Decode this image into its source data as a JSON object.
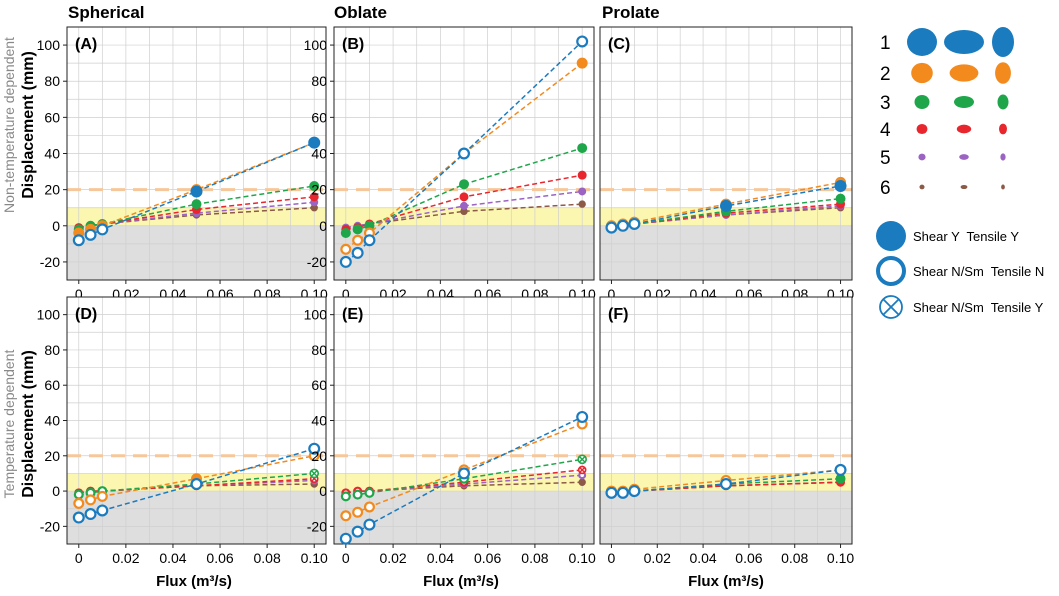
{
  "column_titles": [
    "Spherical",
    "Oblate",
    "Prolate"
  ],
  "row_titles": [
    "Non-temperature dependent",
    "Temperature dependent"
  ],
  "ylabel": "Displacement (mm)",
  "xlabel": "Flux (m³/s)",
  "colors": {
    "1": "#1a7bbf",
    "2": "#f28a1e",
    "3": "#1fa64a",
    "4": "#e8262d",
    "5": "#9b63c2",
    "6": "#8c5a47",
    "yellow_band": "#fbf7b0",
    "gray_band": "#dedede",
    "dash_line": "#f6c79a"
  },
  "legend": {
    "size_labels": [
      "1",
      "2",
      "3",
      "4",
      "5",
      "6"
    ],
    "marker_types": [
      {
        "style": "filled",
        "label": "Shear Y  Tensile Y"
      },
      {
        "style": "hollow",
        "label": "Shear N/Sm  Tensile N"
      },
      {
        "style": "cross",
        "label": "Shear N/Sm  Tensile Y"
      }
    ]
  },
  "chart_data": [
    {
      "panel": "(A)",
      "type": "line",
      "title": "Spherical",
      "x": [
        0,
        0.005,
        0.01,
        0.05,
        0.1
      ],
      "xlim": [
        -0.005,
        0.105
      ],
      "ylim": [
        -30,
        110
      ],
      "xticks": [
        "0",
        "0.02",
        "0.04",
        "0.06",
        "0.08",
        "0.10"
      ],
      "yticks": [
        "-20",
        "0",
        "20",
        "40",
        "60",
        "80",
        "100"
      ],
      "band_yellow": [
        0,
        10
      ],
      "band_gray": [
        -30,
        0
      ],
      "threshold": 20,
      "series": [
        {
          "name": "1",
          "values": [
            -8,
            -5,
            -2,
            19,
            46
          ],
          "markers": [
            "hollow",
            "hollow",
            "hollow",
            "filled",
            "filled"
          ]
        },
        {
          "name": "2",
          "values": [
            -4,
            -2,
            0,
            20,
            46
          ],
          "markers": [
            "filled",
            "filled",
            "filled",
            "filled",
            "filled"
          ]
        },
        {
          "name": "3",
          "values": [
            -2,
            0,
            1,
            12,
            22
          ],
          "markers": [
            "filled",
            "filled",
            "filled",
            "filled",
            "filled"
          ]
        },
        {
          "name": "4",
          "values": [
            -1,
            0,
            1,
            9,
            16
          ],
          "markers": [
            "filled",
            "filled",
            "filled",
            "filled",
            "filled"
          ]
        },
        {
          "name": "5",
          "values": [
            -1,
            0,
            1,
            7,
            13
          ],
          "markers": [
            "filled",
            "filled",
            "filled",
            "filled",
            "filled"
          ]
        },
        {
          "name": "6",
          "values": [
            -1,
            0,
            1,
            6,
            10
          ],
          "markers": [
            "filled",
            "filled",
            "filled",
            "filled",
            "filled"
          ]
        }
      ]
    },
    {
      "panel": "(B)",
      "type": "line",
      "title": "Oblate",
      "x": [
        0,
        0.005,
        0.01,
        0.05,
        0.1
      ],
      "xlim": [
        -0.005,
        0.105
      ],
      "ylim": [
        -30,
        110
      ],
      "xticks": [
        "0",
        "0.02",
        "0.04",
        "0.06",
        "0.08",
        "0.10"
      ],
      "yticks": [
        "-20",
        "0",
        "20",
        "40",
        "60",
        "80",
        "100"
      ],
      "band_yellow": [
        0,
        10
      ],
      "band_gray": [
        -30,
        0
      ],
      "threshold": 20,
      "series": [
        {
          "name": "1",
          "values": [
            -20,
            -15,
            -8,
            40,
            102
          ],
          "markers": [
            "hollow",
            "hollow",
            "hollow",
            "hollow",
            "hollow"
          ]
        },
        {
          "name": "2",
          "values": [
            -13,
            -8,
            -4,
            40,
            90
          ],
          "markers": [
            "hollow",
            "hollow",
            "hollow",
            "hollow",
            "filled"
          ]
        },
        {
          "name": "3",
          "values": [
            -4,
            -2,
            0,
            23,
            43
          ],
          "markers": [
            "filled",
            "filled",
            "filled",
            "filled",
            "filled"
          ]
        },
        {
          "name": "4",
          "values": [
            -2,
            -1,
            1,
            16,
            28
          ],
          "markers": [
            "filled",
            "filled",
            "filled",
            "filled",
            "filled"
          ]
        },
        {
          "name": "5",
          "values": [
            -1,
            0,
            1,
            11,
            19
          ],
          "markers": [
            "filled",
            "filled",
            "filled",
            "filled",
            "filled"
          ]
        },
        {
          "name": "6",
          "values": [
            -1,
            0,
            1,
            8,
            12
          ],
          "markers": [
            "filled",
            "filled",
            "filled",
            "filled",
            "filled"
          ]
        }
      ]
    },
    {
      "panel": "(C)",
      "type": "line",
      "title": "Prolate",
      "x": [
        0,
        0.005,
        0.01,
        0.05,
        0.1
      ],
      "xlim": [
        -0.005,
        0.105
      ],
      "ylim": [
        -30,
        110
      ],
      "xticks": [
        "0",
        "0.02",
        "0.04",
        "0.06",
        "0.08",
        "0.10"
      ],
      "yticks": [
        "-20",
        "0",
        "20",
        "40",
        "60",
        "80",
        "100"
      ],
      "band_yellow": [
        0,
        10
      ],
      "band_gray": [
        -30,
        0
      ],
      "threshold": 20,
      "series": [
        {
          "name": "1",
          "values": [
            -1,
            0,
            1,
            11,
            22
          ],
          "markers": [
            "hollow",
            "hollow",
            "hollow",
            "filled",
            "filled"
          ]
        },
        {
          "name": "2",
          "values": [
            0,
            1,
            2,
            12,
            24
          ],
          "markers": [
            "hollow",
            "filled",
            "filled",
            "filled",
            "filled"
          ]
        },
        {
          "name": "3",
          "values": [
            0,
            0,
            1,
            8,
            15
          ],
          "markers": [
            "filled",
            "filled",
            "filled",
            "filled",
            "filled"
          ]
        },
        {
          "name": "4",
          "values": [
            0,
            0,
            1,
            7,
            12
          ],
          "markers": [
            "filled",
            "filled",
            "filled",
            "filled",
            "filled"
          ]
        },
        {
          "name": "5",
          "values": [
            0,
            0,
            1,
            6,
            11
          ],
          "markers": [
            "filled",
            "filled",
            "filled",
            "filled",
            "filled"
          ]
        },
        {
          "name": "6",
          "values": [
            0,
            0,
            1,
            6,
            10
          ],
          "markers": [
            "filled",
            "filled",
            "filled",
            "filled",
            "filled"
          ]
        }
      ]
    },
    {
      "panel": "(D)",
      "type": "line",
      "title": "",
      "x": [
        0,
        0.005,
        0.01,
        0.05,
        0.1
      ],
      "xlim": [
        -0.005,
        0.105
      ],
      "ylim": [
        -30,
        110
      ],
      "xticks": [
        "0",
        "0.02",
        "0.04",
        "0.06",
        "0.08",
        "0.10"
      ],
      "yticks": [
        "-20",
        "0",
        "20",
        "40",
        "60",
        "80",
        "100"
      ],
      "band_yellow": [
        0,
        10
      ],
      "band_gray": [
        -30,
        0
      ],
      "threshold": 20,
      "series": [
        {
          "name": "1",
          "values": [
            -15,
            -13,
            -11,
            4,
            24
          ],
          "markers": [
            "hollow",
            "hollow",
            "hollow",
            "hollow",
            "hollow"
          ]
        },
        {
          "name": "2",
          "values": [
            -7,
            -5,
            -3,
            7,
            20
          ],
          "markers": [
            "hollow",
            "hollow",
            "hollow",
            "filled",
            "hollow"
          ]
        },
        {
          "name": "3",
          "values": [
            -2,
            -1,
            0,
            4,
            10
          ],
          "markers": [
            "hollow",
            "hollow",
            "hollow",
            "hollow",
            "cross"
          ]
        },
        {
          "name": "4",
          "values": [
            -1,
            0,
            0,
            3,
            7
          ],
          "markers": [
            "hollow",
            "hollow",
            "hollow",
            "hollow",
            "cross"
          ]
        },
        {
          "name": "5",
          "values": [
            -1,
            0,
            0,
            3,
            6
          ],
          "markers": [
            "hollow",
            "hollow",
            "hollow",
            "hollow",
            "hollow"
          ]
        },
        {
          "name": "6",
          "values": [
            -1,
            0,
            0,
            3,
            4
          ],
          "markers": [
            "hollow",
            "hollow",
            "hollow",
            "hollow",
            "filled"
          ]
        }
      ]
    },
    {
      "panel": "(E)",
      "type": "line",
      "title": "",
      "x": [
        0,
        0.005,
        0.01,
        0.05,
        0.1
      ],
      "xlim": [
        -0.005,
        0.105
      ],
      "ylim": [
        -30,
        110
      ],
      "xticks": [
        "0",
        "0.02",
        "0.04",
        "0.06",
        "0.08",
        "0.10"
      ],
      "yticks": [
        "-20",
        "0",
        "20",
        "40",
        "60",
        "80",
        "100"
      ],
      "band_yellow": [
        0,
        10
      ],
      "band_gray": [
        -30,
        0
      ],
      "threshold": 20,
      "series": [
        {
          "name": "1",
          "values": [
            -27,
            -23,
            -19,
            10,
            42
          ],
          "markers": [
            "hollow",
            "hollow",
            "hollow",
            "hollow",
            "hollow"
          ]
        },
        {
          "name": "2",
          "values": [
            -14,
            -12,
            -9,
            12,
            38
          ],
          "markers": [
            "hollow",
            "hollow",
            "hollow",
            "hollow",
            "hollow"
          ]
        },
        {
          "name": "3",
          "values": [
            -3,
            -2,
            -1,
            7,
            18
          ],
          "markers": [
            "hollow",
            "hollow",
            "hollow",
            "hollow",
            "cross"
          ]
        },
        {
          "name": "4",
          "values": [
            -1,
            0,
            0,
            5,
            12
          ],
          "markers": [
            "hollow",
            "hollow",
            "hollow",
            "hollow",
            "cross"
          ]
        },
        {
          "name": "5",
          "values": [
            -1,
            0,
            0,
            4,
            9
          ],
          "markers": [
            "hollow",
            "hollow",
            "hollow",
            "hollow",
            "hollow"
          ]
        },
        {
          "name": "6",
          "values": [
            -1,
            0,
            0,
            3,
            5
          ],
          "markers": [
            "hollow",
            "hollow",
            "hollow",
            "hollow",
            "filled"
          ]
        }
      ]
    },
    {
      "panel": "(F)",
      "type": "line",
      "title": "",
      "x": [
        0,
        0.005,
        0.01,
        0.05,
        0.1
      ],
      "xlim": [
        -0.005,
        0.105
      ],
      "ylim": [
        -30,
        110
      ],
      "xticks": [
        "0",
        "0.02",
        "0.04",
        "0.06",
        "0.08",
        "0.10"
      ],
      "yticks": [
        "-20",
        "0",
        "20",
        "40",
        "60",
        "80",
        "100"
      ],
      "band_yellow": [
        0,
        10
      ],
      "band_gray": [
        -30,
        0
      ],
      "threshold": 20,
      "series": [
        {
          "name": "1",
          "values": [
            -1,
            -1,
            0,
            4,
            12
          ],
          "markers": [
            "hollow",
            "hollow",
            "hollow",
            "hollow",
            "hollow"
          ]
        },
        {
          "name": "2",
          "values": [
            0,
            0,
            1,
            6,
            12
          ],
          "markers": [
            "hollow",
            "hollow",
            "hollow",
            "hollow",
            "hollow"
          ]
        },
        {
          "name": "3",
          "values": [
            0,
            0,
            0,
            4,
            7
          ],
          "markers": [
            "hollow",
            "hollow",
            "hollow",
            "hollow",
            "filled"
          ]
        },
        {
          "name": "4",
          "values": [
            0,
            0,
            0,
            3,
            5
          ],
          "markers": [
            "filled",
            "filled",
            "filled",
            "filled",
            "filled"
          ]
        },
        {
          "name": "5",
          "values": [
            0,
            0,
            0,
            3,
            5
          ],
          "markers": [
            "hollow",
            "hollow",
            "hollow",
            "hollow",
            "hollow"
          ]
        },
        {
          "name": "6",
          "values": [
            0,
            0,
            0,
            3,
            5
          ],
          "markers": [
            "hollow",
            "hollow",
            "hollow",
            "hollow",
            "hollow"
          ]
        }
      ]
    }
  ]
}
